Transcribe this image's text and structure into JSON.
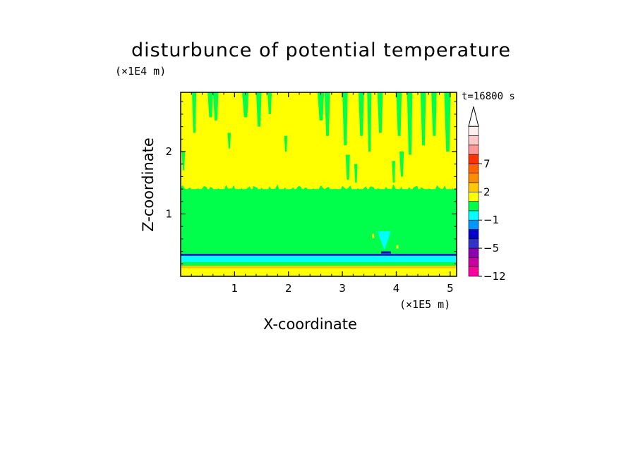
{
  "chart_data": {
    "type": "heatmap",
    "title": "disturbunce of potential temperature",
    "xlabel": "X-coordinate",
    "ylabel": "Z-coordinate",
    "x_unit": "(×1E5 m)",
    "y_unit": "(×1E4 m)",
    "time_label": "t=16800 s",
    "xlim": [
      0,
      5.12
    ],
    "ylim": [
      0,
      2.95
    ],
    "x_ticks": [
      1,
      2,
      3,
      4,
      5
    ],
    "y_ticks": [
      1,
      2
    ],
    "x_tick_labels": [
      "1",
      "2",
      "3",
      "4",
      "5"
    ],
    "y_tick_labels": [
      "1",
      "2"
    ],
    "bands": [
      {
        "z_from": 0.0,
        "z_to": 0.05,
        "level": "yellow"
      },
      {
        "z_from": 0.05,
        "z_to": 0.13,
        "level": "yellow"
      },
      {
        "z_from": 0.13,
        "z_to": 0.17,
        "level": "orange-yellow"
      },
      {
        "z_from": 0.17,
        "z_to": 0.23,
        "level": "green"
      },
      {
        "z_from": 0.23,
        "z_to": 0.33,
        "level": "cyan"
      },
      {
        "z_from": 0.33,
        "z_to": 0.36,
        "level": "blue"
      },
      {
        "z_from": 0.36,
        "z_to": 1.4,
        "level": "green"
      },
      {
        "z_from": 1.4,
        "z_to": 2.95,
        "level": "yellow"
      }
    ],
    "colorbar": {
      "labels": [
        "7",
        "2",
        "−1",
        "−5",
        "−12"
      ],
      "colors": [
        "#ff00a0",
        "#c800a0",
        "#8c00b4",
        "#3232c8",
        "#0000c8",
        "#0096ff",
        "#00ffff",
        "#00ff4b",
        "#ffff00",
        "#ffc800",
        "#ff8c00",
        "#ff6400",
        "#ff3200",
        "#ff9696",
        "#ffc8c8",
        "#fff0f0"
      ]
    }
  }
}
